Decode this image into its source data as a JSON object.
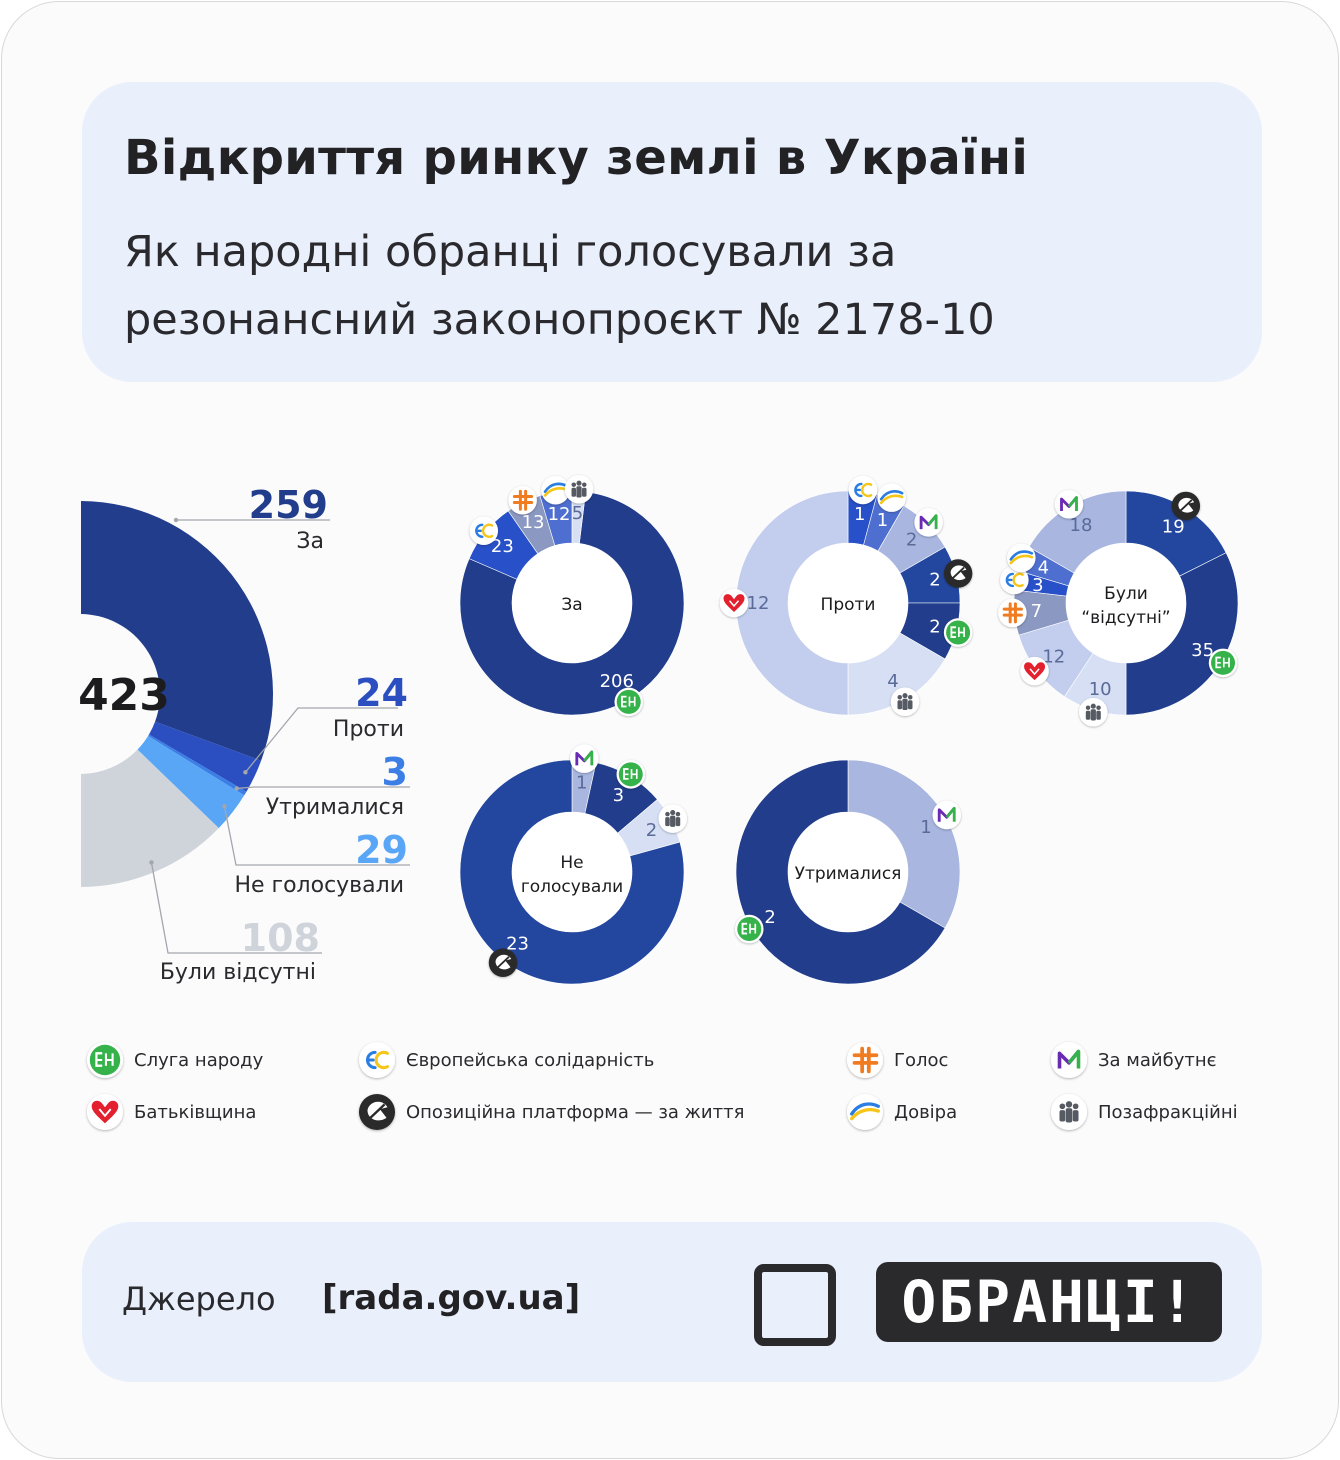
{
  "header": {
    "title": "Відкриття ринку землі в Україні",
    "subtitle_line1": "Як народні обранці голосували за",
    "subtitle_line2": "резонансний законопроєкт № 2178-10"
  },
  "colors": {
    "za": "#213d8c",
    "proty": "#2b4fc0",
    "utrymalysia": "#3b7ee6",
    "ne_holosuvaly": "#5aa6f6",
    "vidsutni": "#cfd3da",
    "sluha": "#213d8c",
    "es": "#2850c8",
    "holos": "#8a98c2",
    "dovira": "#4f6fd0",
    "maibutne": "#a8b6e0",
    "pozafraktsiini": "#d6dff4",
    "opzzh": "#23479f",
    "batkivshchyna": "#c3ceee",
    "accent_green": "#36b24a",
    "accent_red": "#e3202e",
    "accent_orange": "#f07c22"
  },
  "chart_data": [
    {
      "type": "pie",
      "variant": "half-donut",
      "total": "423",
      "slices": [
        {
          "label": "За",
          "value": 259
        },
        {
          "label": "Проти",
          "value": 24
        },
        {
          "label": "Утрималися",
          "value": 3
        },
        {
          "label": "Не голосували",
          "value": 29
        },
        {
          "label": "Були відсутні",
          "value": 108
        }
      ]
    },
    {
      "type": "pie",
      "variant": "donut",
      "center_label": "За",
      "slices": [
        {
          "party": "Слуга народу",
          "value": 206
        },
        {
          "party": "Європейська солідарність",
          "value": 23
        },
        {
          "party": "Голос",
          "value": 13
        },
        {
          "party": "Довіра",
          "value": 12
        },
        {
          "party": "Позафракційні",
          "value": 5
        }
      ]
    },
    {
      "type": "pie",
      "variant": "donut",
      "center_label": "Проти",
      "slices": [
        {
          "party": "Європейська солідарність",
          "value": 1
        },
        {
          "party": "Довіра",
          "value": 1
        },
        {
          "party": "За майбутнє",
          "value": 2
        },
        {
          "party": "Опозиційна платформа — за життя",
          "value": 2
        },
        {
          "party": "Слуга народу",
          "value": 2
        },
        {
          "party": "Позафракційні",
          "value": 4
        },
        {
          "party": "Батьківщина",
          "value": 12
        }
      ]
    },
    {
      "type": "pie",
      "variant": "donut",
      "center_label_line1": "Були",
      "center_label_line2": "“відсутні”",
      "slices": [
        {
          "party": "Опозиційна платформа — за життя",
          "value": 19
        },
        {
          "party": "Слуга народу",
          "value": 35
        },
        {
          "party": "Позафракційні",
          "value": 10
        },
        {
          "party": "Батьківщина",
          "value": 12
        },
        {
          "party": "Голос",
          "value": 7
        },
        {
          "party": "Європейська солідарність",
          "value": 3
        },
        {
          "party": "Довіра",
          "value": 4
        },
        {
          "party": "За майбутнє",
          "value": 18
        }
      ]
    },
    {
      "type": "pie",
      "variant": "donut",
      "center_label_line1": "Не",
      "center_label_line2": "голосували",
      "slices": [
        {
          "party": "За майбутнє",
          "value": 1
        },
        {
          "party": "Слуга народу",
          "value": 3
        },
        {
          "party": "Позафракційні",
          "value": 2
        },
        {
          "party": "Опозиційна платформа — за життя",
          "value": 23
        }
      ]
    },
    {
      "type": "pie",
      "variant": "donut",
      "center_label": "Утрималися",
      "slices": [
        {
          "party": "За майбутнє",
          "value": 1
        },
        {
          "party": "Слуга народу",
          "value": 2
        }
      ]
    }
  ],
  "legend": [
    {
      "key": "sluha",
      "label": "Слуга народу",
      "icon": "sluha-narodu-icon"
    },
    {
      "key": "es",
      "label": "Європейська солідарність",
      "icon": "yevropeiska-solidarnist-icon"
    },
    {
      "key": "holos",
      "label": "Голос",
      "icon": "holos-icon"
    },
    {
      "key": "maibutne",
      "label": "За майбутнє",
      "icon": "za-maibutne-icon"
    },
    {
      "key": "batkivshchyna",
      "label": "Батьківщина",
      "icon": "batkivshchyna-icon"
    },
    {
      "key": "opzzh",
      "label": "Опозиційна платформа — за життя",
      "icon": "opzzh-icon"
    },
    {
      "key": "dovira",
      "label": "Довіра",
      "icon": "dovira-icon"
    },
    {
      "key": "pozafraktsiini",
      "label": "Позафракційні",
      "icon": "pozafraktsiini-icon"
    }
  ],
  "footer": {
    "source_label": "Джерело",
    "source_value": "[rada.gov.ua]",
    "logo_text": "ОБРАНЦІ!"
  }
}
